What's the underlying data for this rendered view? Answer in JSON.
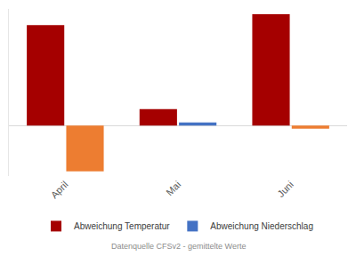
{
  "chart_data": {
    "type": "bar",
    "categories": [
      "April",
      "Mai",
      "Juni"
    ],
    "series": [
      {
        "name": "Abweichung Temperatur",
        "color": "#a50000",
        "values": [
          2.58,
          0.42,
          2.86
        ]
      },
      {
        "name": "Abweichung Niederschlag",
        "color": "#4472c4",
        "colors": [
          "#ed7d31",
          "#4472c4",
          "#ed7d31"
        ],
        "values": [
          -1.18,
          0.08,
          -0.08
        ]
      }
    ],
    "ylim": [
      -1.3,
      3.0
    ],
    "tick_labels": "x",
    "grid": false,
    "legend": "bottom",
    "annotations": [
      "Datenquelle CFSv2 - gemittelte Werte"
    ]
  }
}
